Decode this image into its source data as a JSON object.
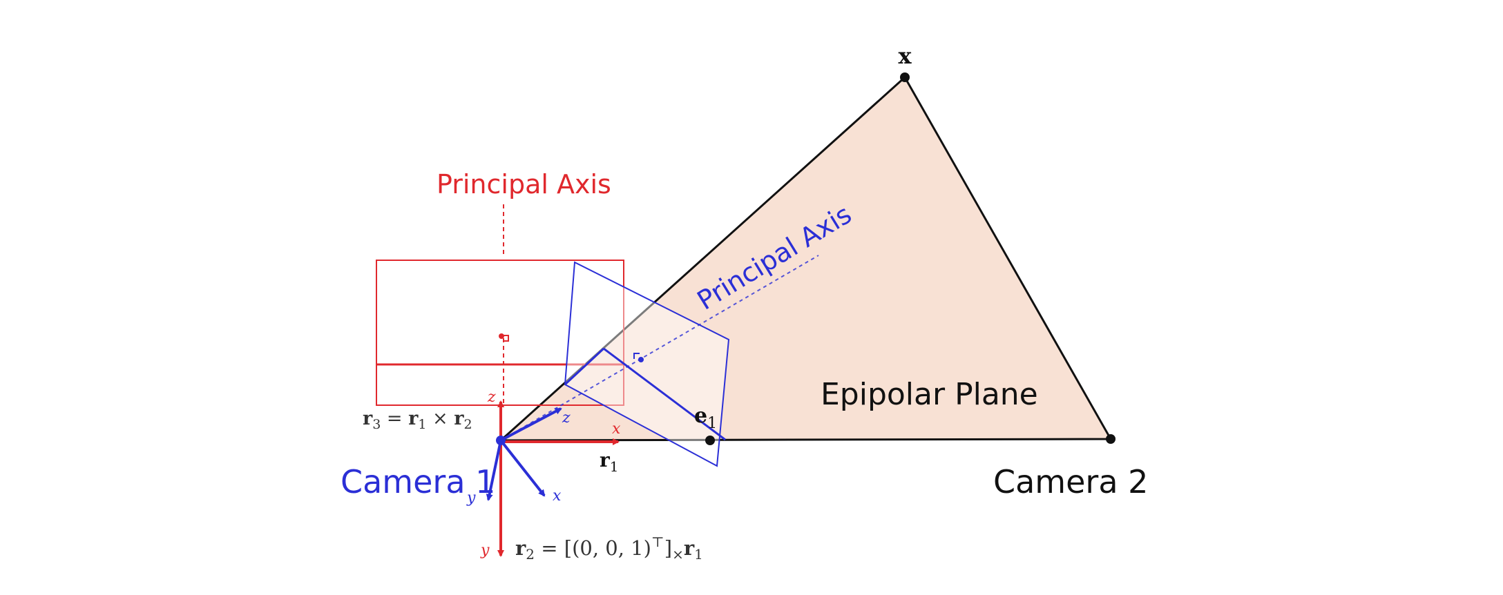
{
  "labels": {
    "point_x": "x",
    "epipole": "e",
    "epipole_subscript": "1",
    "epipolar_plane": "Epipolar Plane",
    "camera1": "Camera 1",
    "camera2": "Camera 2",
    "principal_axis_red": "Principal Axis",
    "principal_axis_blue": "Principal Axis",
    "red_axis_x": "x",
    "red_axis_y": "y",
    "red_axis_z": "z",
    "blue_axis_x": "x",
    "blue_axis_y": "y",
    "blue_axis_z": "z",
    "r1_label": "r",
    "r1_sub": "1",
    "r3_eq": {
      "lhs": "r",
      "lhs_sub": "3",
      "eq": " = ",
      "a": "r",
      "a_sub": "1",
      "op": " × ",
      "b": "r",
      "b_sub": "2"
    },
    "r2_eq": {
      "lhs": "r",
      "lhs_sub": "2",
      "eq": " = [(0, 0, 1)",
      "sup": "⊤",
      "close": "]",
      "cross_sub": "×",
      "r": "r",
      "r_sub": "1"
    }
  },
  "colors": {
    "red": "#e0282d",
    "blue": "#2b2fd6",
    "plane_fill": "#f8e1d4",
    "black": "#111111"
  }
}
